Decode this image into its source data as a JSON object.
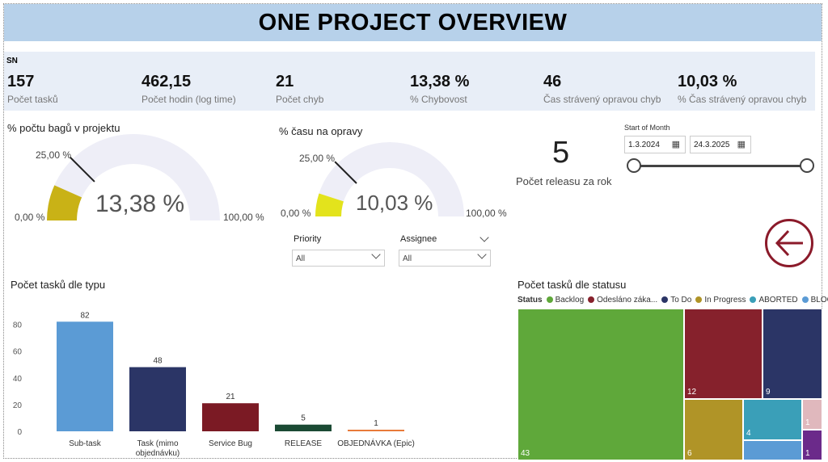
{
  "header": {
    "title": "ONE PROJECT OVERVIEW"
  },
  "kpis": {
    "group_label": "SN",
    "items": [
      {
        "value": "157",
        "label": "Počet tasků"
      },
      {
        "value": "462,15",
        "label": "Počet hodin (log time)"
      },
      {
        "value": "21",
        "label": "Počet chyb"
      },
      {
        "value": "13,38 %",
        "label": "% Chybovost"
      },
      {
        "value": "46",
        "label": "Čas strávený opravou chyb"
      },
      {
        "value": "10,03 %",
        "label": "% Čas strávený opravou chyb"
      }
    ]
  },
  "gauge1": {
    "title": "% počtu bagů v projektu",
    "value_text": "13,38 %",
    "min": "0,00 %",
    "max": "100,00 %",
    "target": "25,00 %",
    "value": 0.1338,
    "target_value": 0.25,
    "color": "#c9b216"
  },
  "gauge2": {
    "title": "% času na opravy",
    "value_text": "10,03 %",
    "min": "0,00 %",
    "max": "100,00 %",
    "target": "25,00 %",
    "value": 0.1003,
    "target_value": 0.25,
    "color": "#e3e31c"
  },
  "releases": {
    "value": "5",
    "label": "Počet releasu za rok"
  },
  "date_filter": {
    "title": "Start of Month",
    "start": "1.3.2024",
    "end": "24.3.2025"
  },
  "filters": {
    "priority": {
      "title": "Priority",
      "value": "All"
    },
    "assignee": {
      "title": "Assignee",
      "value": "All"
    }
  },
  "back_button": {
    "icon": "arrow-left-circle-icon",
    "color": "#8b1a2a"
  },
  "bar_chart_title": "Počet tasků dle typu",
  "treemap_title": "Počet tasků dle statusu",
  "chart_data": [
    {
      "type": "bar",
      "title": "Počet tasků dle typu",
      "categories": [
        "Sub-task",
        "Task (mimo objednávku)",
        "Service Bug",
        "RELEASE",
        "OBJEDNÁVKA (Epic)"
      ],
      "values": [
        82,
        48,
        21,
        5,
        1
      ],
      "colors": [
        "#5b9bd5",
        "#2b3566",
        "#7b1a24",
        "#1b4a34",
        "#e87a3a"
      ],
      "ylim": [
        0,
        90
      ],
      "yticks": [
        0,
        20,
        40,
        60,
        80
      ],
      "grid": false
    },
    {
      "type": "treemap",
      "title": "Počet tasků dle statusu",
      "legend_title": "Status",
      "legend": [
        {
          "name": "Backlog",
          "color": "#5fa83a"
        },
        {
          "name": "Odesláno záka...",
          "color": "#86212c"
        },
        {
          "name": "To Do",
          "color": "#2b3566"
        },
        {
          "name": "In Progress",
          "color": "#b09427"
        },
        {
          "name": "ABORTED",
          "color": "#3a9fb8"
        },
        {
          "name": "BLOCKED",
          "color": "#5b9bd5"
        }
      ],
      "cells": [
        {
          "label": "43",
          "color": "#5fa83a"
        },
        {
          "label": "12",
          "color": "#86212c"
        },
        {
          "label": "9",
          "color": "#2b3566"
        },
        {
          "label": "6",
          "color": "#b09427"
        },
        {
          "label": "4",
          "color": "#3a9fb8"
        },
        {
          "label": "",
          "color": "#5b9bd5"
        },
        {
          "label": "1",
          "color": "#e0b8bd"
        },
        {
          "label": "1",
          "color": "#6b2a8a"
        }
      ]
    }
  ]
}
